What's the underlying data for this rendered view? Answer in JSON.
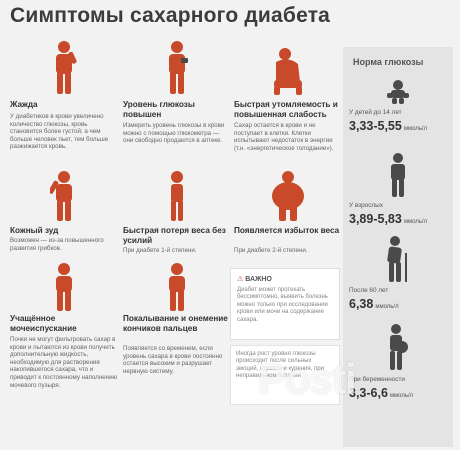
{
  "title": "Симптомы сахарного диабета",
  "symptoms": [
    {
      "title": "Жажда",
      "text": "У диабетиков в крови увеличено количество глюкозы, кровь становится более густой; а чем больше человек пьет, тем больше разжижается кровь."
    },
    {
      "title": "Уровень глюкозы повышен",
      "text": "Измерить уровень глюкозы в крови можно с помощью глюкометра — они свободно продаются в аптеке."
    },
    {
      "title": "Быстрая утомляемость и повышенная слабость",
      "text": "Сахар остается в крови и не поступает в клетки. Клетки испытывают недостаток в энергии (т.н. «энергетическое голодание»)."
    },
    {
      "title": "Кожный зуд",
      "text": "Возможен — из-за повышенного развития грибков."
    },
    {
      "title": "Быстрая потеря веса без усилий",
      "text": "При диабете 1-й степени."
    },
    {
      "title": "Появляется избыток веса",
      "text": "При диабете 2-й степени."
    },
    {
      "title": "Учащённое мочеиспускание",
      "text": "Почки не могут фильтровать сахар в крови и пытаются из крови получить дополнительную жидкость, необходимую для растворения накопившегося сахара, что и приводит к постоянному наполнению мочевого пузыря."
    },
    {
      "title": "Покалывание и онемение кончиков пальцев",
      "text": "Появляется со временем, если уровень сахара в крови постоянно остается высоким и разрушает нервную систему."
    }
  ],
  "warning": {
    "label": "ВАЖНО",
    "text": "Диабет может протекать бессимптомно, выявить болезнь можно только при исследовании крови или мочи на содержание сахара."
  },
  "note": "Иногда рост уровня глюкозы происходит после сильных эмоций, стресса и курения, при неправильном питании",
  "norm": {
    "title": "Норма глюкозы",
    "items": [
      {
        "label": "У детей до 14 лет",
        "value": "3,33-5,55",
        "unit": "ммоль/л"
      },
      {
        "label": "У взрослых",
        "value": "3,89-5,83",
        "unit": "ммоль/л"
      },
      {
        "label": "После 60 лет",
        "value": "6,38",
        "unit": "ммоль/л"
      },
      {
        "label": "При беременности",
        "value": "3,3-6,6",
        "unit": "ммоль/л"
      }
    ]
  },
  "watermark": "Posti",
  "colors": {
    "accent": "#c94a2a",
    "figure_dark": "#4a4a4a",
    "sidebar": "#e4e4e4"
  }
}
